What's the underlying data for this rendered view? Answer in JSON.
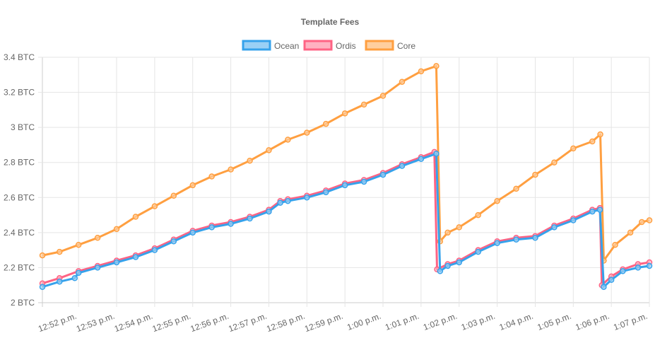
{
  "chart_data": {
    "type": "line",
    "title": "Template Fees",
    "xlabel": "",
    "ylabel": "",
    "x_unit": "minutes after 12:00 p.m.",
    "xlim": [
      51.05,
      67
    ],
    "ylim": [
      2,
      3.4
    ],
    "grid": true,
    "legend_position": "top",
    "y_ticks": [
      "2 BTC",
      "2.2 BTC",
      "2.4 BTC",
      "2.6 BTC",
      "2.8 BTC",
      "3 BTC",
      "3.2 BTC",
      "3.4 BTC"
    ],
    "y_tick_values": [
      2,
      2.2,
      2.4,
      2.6,
      2.8,
      3,
      3.2,
      3.4
    ],
    "x_ticks": [
      "12:52 p.m.",
      "12:53 p.m.",
      "12:54 p.m.",
      "12:55 p.m.",
      "12:56 p.m.",
      "12:57 p.m.",
      "12:58 p.m.",
      "12:59 p.m.",
      "1:00 p.m.",
      "1:01 p.m.",
      "1:02 p.m.",
      "1:03 p.m.",
      "1:04 p.m.",
      "1:05 p.m.",
      "1:06 p.m.",
      "1:07 p.m."
    ],
    "x_tick_values": [
      52,
      53,
      54,
      55,
      56,
      57,
      58,
      59,
      60,
      61,
      62,
      63,
      64,
      65,
      66,
      67
    ],
    "series": [
      {
        "name": "Ocean",
        "color": "#36a2eb",
        "fill": "#9ad0f5",
        "points": [
          [
            51.05,
            2.09
          ],
          [
            51.5,
            2.12
          ],
          [
            51.9,
            2.14
          ],
          [
            52,
            2.17
          ],
          [
            52.5,
            2.2
          ],
          [
            53,
            2.23
          ],
          [
            53.5,
            2.26
          ],
          [
            54,
            2.3
          ],
          [
            54.5,
            2.35
          ],
          [
            55,
            2.4
          ],
          [
            55.5,
            2.43
          ],
          [
            56,
            2.45
          ],
          [
            56.5,
            2.48
          ],
          [
            57,
            2.52
          ],
          [
            57.3,
            2.57
          ],
          [
            57.5,
            2.58
          ],
          [
            58,
            2.6
          ],
          [
            58.5,
            2.63
          ],
          [
            59,
            2.67
          ],
          [
            59.5,
            2.69
          ],
          [
            60,
            2.73
          ],
          [
            60.5,
            2.78
          ],
          [
            61,
            2.82
          ],
          [
            61.4,
            2.85
          ],
          [
            61.5,
            2.18
          ],
          [
            61.7,
            2.21
          ],
          [
            62,
            2.23
          ],
          [
            62.5,
            2.29
          ],
          [
            63,
            2.34
          ],
          [
            63.5,
            2.36
          ],
          [
            64,
            2.37
          ],
          [
            64.5,
            2.43
          ],
          [
            65,
            2.47
          ],
          [
            65.5,
            2.52
          ],
          [
            65.7,
            2.53
          ],
          [
            65.8,
            2.09
          ],
          [
            66,
            2.13
          ],
          [
            66.3,
            2.18
          ],
          [
            66.7,
            2.2
          ],
          [
            67,
            2.21
          ]
        ]
      },
      {
        "name": "Ordis",
        "color": "#ff6384",
        "fill": "#ffb1c1",
        "points": [
          [
            51.05,
            2.11
          ],
          [
            51.5,
            2.14
          ],
          [
            52,
            2.18
          ],
          [
            52.5,
            2.21
          ],
          [
            53,
            2.24
          ],
          [
            53.5,
            2.27
          ],
          [
            54,
            2.31
          ],
          [
            54.5,
            2.36
          ],
          [
            55,
            2.41
          ],
          [
            55.5,
            2.44
          ],
          [
            56,
            2.46
          ],
          [
            56.5,
            2.49
          ],
          [
            57,
            2.53
          ],
          [
            57.3,
            2.58
          ],
          [
            57.5,
            2.59
          ],
          [
            58,
            2.61
          ],
          [
            58.5,
            2.64
          ],
          [
            59,
            2.68
          ],
          [
            59.5,
            2.7
          ],
          [
            60,
            2.74
          ],
          [
            60.5,
            2.79
          ],
          [
            61,
            2.83
          ],
          [
            61.35,
            2.86
          ],
          [
            61.42,
            2.19
          ],
          [
            61.7,
            2.22
          ],
          [
            62,
            2.24
          ],
          [
            62.5,
            2.3
          ],
          [
            63,
            2.35
          ],
          [
            63.5,
            2.37
          ],
          [
            64,
            2.38
          ],
          [
            64.5,
            2.44
          ],
          [
            65,
            2.48
          ],
          [
            65.5,
            2.53
          ],
          [
            65.7,
            2.54
          ],
          [
            65.75,
            2.1
          ],
          [
            66,
            2.15
          ],
          [
            66.3,
            2.19
          ],
          [
            66.7,
            2.22
          ],
          [
            67,
            2.23
          ]
        ]
      },
      {
        "name": "Core",
        "color": "#ff9f40",
        "fill": "#ffcf9f",
        "points": [
          [
            51.05,
            2.27
          ],
          [
            51.5,
            2.29
          ],
          [
            52,
            2.33
          ],
          [
            52.5,
            2.37
          ],
          [
            53,
            2.42
          ],
          [
            53.5,
            2.49
          ],
          [
            54,
            2.55
          ],
          [
            54.5,
            2.61
          ],
          [
            55,
            2.67
          ],
          [
            55.5,
            2.72
          ],
          [
            56,
            2.76
          ],
          [
            56.5,
            2.81
          ],
          [
            57,
            2.87
          ],
          [
            57.5,
            2.93
          ],
          [
            58,
            2.97
          ],
          [
            58.5,
            3.02
          ],
          [
            59,
            3.08
          ],
          [
            59.5,
            3.13
          ],
          [
            60,
            3.18
          ],
          [
            60.5,
            3.26
          ],
          [
            61,
            3.32
          ],
          [
            61.4,
            3.35
          ],
          [
            61.5,
            2.35
          ],
          [
            61.7,
            2.4
          ],
          [
            62,
            2.43
          ],
          [
            62.5,
            2.5
          ],
          [
            63,
            2.58
          ],
          [
            63.5,
            2.65
          ],
          [
            64,
            2.73
          ],
          [
            64.5,
            2.8
          ],
          [
            65,
            2.88
          ],
          [
            65.5,
            2.92
          ],
          [
            65.71,
            2.96
          ],
          [
            65.8,
            2.24
          ],
          [
            66.1,
            2.33
          ],
          [
            66.5,
            2.4
          ],
          [
            66.8,
            2.46
          ],
          [
            67,
            2.47
          ]
        ]
      }
    ]
  }
}
